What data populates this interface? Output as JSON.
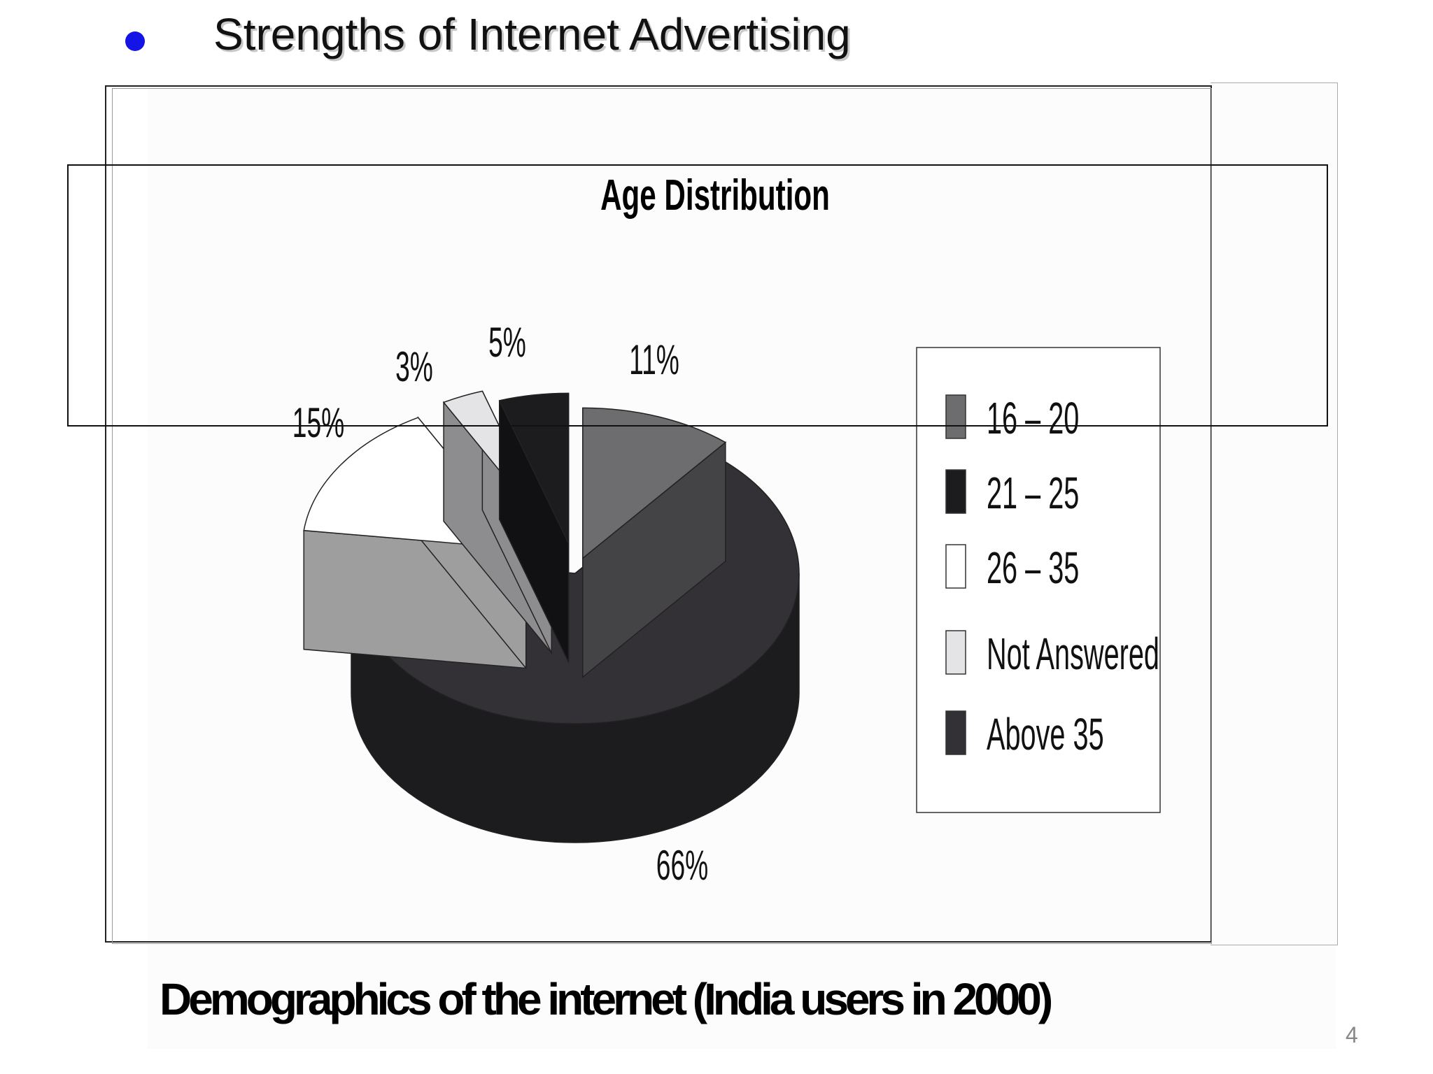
{
  "slide": {
    "heading": "Strengths of Internet Advertising",
    "caption": "Demographics of the internet (India users in 2000)",
    "page_number": "4",
    "bullet_color": "#1414e6"
  },
  "chart_data": {
    "type": "pie",
    "style": "3d-exploded",
    "title": "Age Distribution",
    "legend_position": "right",
    "slices": [
      {
        "label": "16 – 20",
        "value": 11,
        "display": "11%",
        "color": "#6d6c6f"
      },
      {
        "label": "Above 35",
        "value": 66,
        "display": "66%",
        "color": "#333136"
      },
      {
        "label": "26 – 35",
        "value": 15,
        "display": "15%",
        "color": "#ffffff"
      },
      {
        "label": "Not Answered",
        "value": 3,
        "display": "3%",
        "color": "#e4e3e6"
      },
      {
        "label": "21 – 25",
        "value": 5,
        "display": "5%",
        "color": "#1c1b1e"
      }
    ],
    "legend": [
      "16 – 20",
      "21 – 25",
      "26 – 35",
      "Not Answered",
      "Above 35"
    ]
  }
}
